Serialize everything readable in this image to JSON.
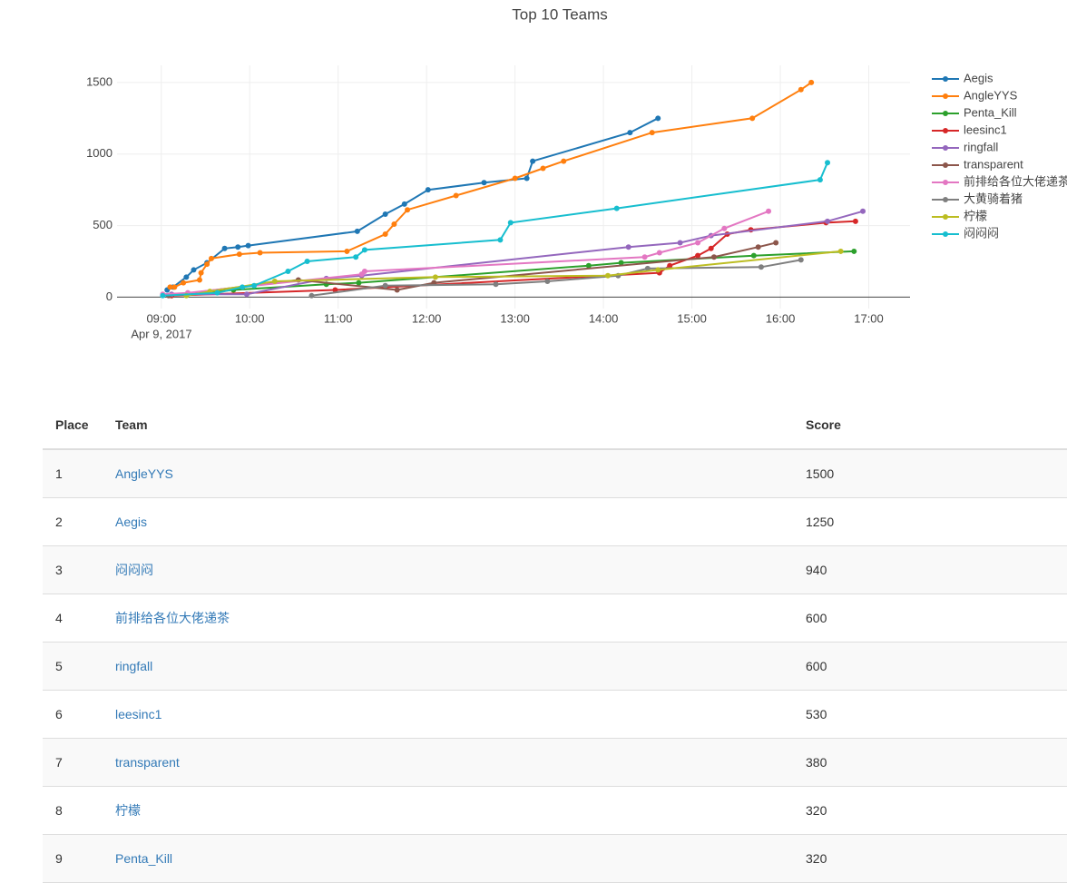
{
  "chart_data": {
    "type": "line",
    "title": "Top 10 Teams",
    "x_date_label": "Apr 9, 2017",
    "xlim": [
      "2017-04-09 08:30",
      "2017-04-09 17:28"
    ],
    "xticks": [
      {
        "value": "2017-04-09 09:00",
        "label": "09:00"
      },
      {
        "value": "2017-04-09 10:00",
        "label": "10:00"
      },
      {
        "value": "2017-04-09 11:00",
        "label": "11:00"
      },
      {
        "value": "2017-04-09 12:00",
        "label": "12:00"
      },
      {
        "value": "2017-04-09 13:00",
        "label": "13:00"
      },
      {
        "value": "2017-04-09 14:00",
        "label": "14:00"
      },
      {
        "value": "2017-04-09 15:00",
        "label": "15:00"
      },
      {
        "value": "2017-04-09 16:00",
        "label": "16:00"
      },
      {
        "value": "2017-04-09 17:00",
        "label": "17:00"
      }
    ],
    "ylim": [
      -80,
      1620
    ],
    "yticks": [
      0,
      500,
      1000,
      1500
    ],
    "grid": true,
    "legend": "right",
    "series": [
      {
        "name": "Aegis",
        "color": "#1f77b4",
        "x": [
          "2017-04-09 09:04",
          "2017-04-09 09:08",
          "2017-04-09 09:17",
          "2017-04-09 09:22",
          "2017-04-09 09:31",
          "2017-04-09 09:43",
          "2017-04-09 09:52",
          "2017-04-09 09:59",
          "2017-04-09 11:13",
          "2017-04-09 11:32",
          "2017-04-09 11:45",
          "2017-04-09 12:01",
          "2017-04-09 12:39",
          "2017-04-09 13:08",
          "2017-04-09 13:12",
          "2017-04-09 14:18",
          "2017-04-09 14:37"
        ],
        "values": [
          50,
          70,
          140,
          190,
          240,
          340,
          350,
          360,
          460,
          580,
          650,
          750,
          800,
          830,
          950,
          1150,
          1250
        ]
      },
      {
        "name": "AngleYYS",
        "color": "#ff7f0e",
        "x": [
          "2017-04-09 09:06",
          "2017-04-09 09:09",
          "2017-04-09 09:15",
          "2017-04-09 09:26",
          "2017-04-09 09:27",
          "2017-04-09 09:31",
          "2017-04-09 09:34",
          "2017-04-09 09:53",
          "2017-04-09 10:07",
          "2017-04-09 11:06",
          "2017-04-09 11:32",
          "2017-04-09 11:38",
          "2017-04-09 11:47",
          "2017-04-09 12:20",
          "2017-04-09 13:00",
          "2017-04-09 13:19",
          "2017-04-09 13:33",
          "2017-04-09 14:33",
          "2017-04-09 15:41",
          "2017-04-09 16:14",
          "2017-04-09 16:21"
        ],
        "values": [
          70,
          70,
          100,
          120,
          170,
          230,
          270,
          300,
          310,
          320,
          440,
          510,
          610,
          710,
          830,
          900,
          950,
          1150,
          1250,
          1450,
          1500
        ]
      },
      {
        "name": "Penta_Kill",
        "color": "#2ca02c",
        "x": [
          "2017-04-09 09:07",
          "2017-04-09 09:49",
          "2017-04-09 10:52",
          "2017-04-09 11:14",
          "2017-04-09 13:50",
          "2017-04-09 14:12",
          "2017-04-09 15:42",
          "2017-04-09 16:50"
        ],
        "values": [
          10,
          50,
          90,
          100,
          220,
          240,
          290,
          320
        ]
      },
      {
        "name": "leesinc1",
        "color": "#d62728",
        "x": [
          "2017-04-09 09:07",
          "2017-04-09 10:58",
          "2017-04-09 14:38",
          "2017-04-09 14:45",
          "2017-04-09 15:04",
          "2017-04-09 15:13",
          "2017-04-09 15:24",
          "2017-04-09 15:40",
          "2017-04-09 16:31",
          "2017-04-09 16:51"
        ],
        "values": [
          10,
          50,
          170,
          220,
          290,
          340,
          440,
          470,
          520,
          530
        ]
      },
      {
        "name": "ringfall",
        "color": "#9467bd",
        "x": [
          "2017-04-09 09:07",
          "2017-04-09 09:58",
          "2017-04-09 10:52",
          "2017-04-09 11:16",
          "2017-04-09 14:17",
          "2017-04-09 14:52",
          "2017-04-09 15:13",
          "2017-04-09 16:32",
          "2017-04-09 16:56"
        ],
        "values": [
          20,
          20,
          130,
          150,
          350,
          380,
          430,
          530,
          600
        ]
      },
      {
        "name": "transparent",
        "color": "#8c564b",
        "x": [
          "2017-04-09 09:05",
          "2017-04-09 10:33",
          "2017-04-09 11:40",
          "2017-04-09 12:05",
          "2017-04-09 15:15",
          "2017-04-09 15:45",
          "2017-04-09 15:57"
        ],
        "values": [
          10,
          120,
          50,
          100,
          280,
          350,
          380
        ]
      },
      {
        "name": "前排给各位大佬递茶",
        "color": "#e377c2",
        "x": [
          "2017-04-09 09:01",
          "2017-04-09 09:18",
          "2017-04-09 11:16",
          "2017-04-09 11:18",
          "2017-04-09 14:28",
          "2017-04-09 14:38",
          "2017-04-09 15:04",
          "2017-04-09 15:22",
          "2017-04-09 15:52"
        ],
        "values": [
          20,
          30,
          160,
          180,
          280,
          310,
          380,
          480,
          600
        ]
      },
      {
        "name": "大黄骑着猪",
        "color": "#7f7f7f",
        "x": [
          "2017-04-09 10:42",
          "2017-04-09 11:32",
          "2017-04-09 12:47",
          "2017-04-09 13:22",
          "2017-04-09 14:10",
          "2017-04-09 14:30",
          "2017-04-09 15:47",
          "2017-04-09 16:14"
        ],
        "values": [
          10,
          80,
          90,
          110,
          150,
          200,
          210,
          260
        ]
      },
      {
        "name": "柠檬",
        "color": "#bcbd22",
        "x": [
          "2017-04-09 09:17",
          "2017-04-09 09:33",
          "2017-04-09 10:17",
          "2017-04-09 12:06",
          "2017-04-09 14:03",
          "2017-04-09 14:37",
          "2017-04-09 16:41"
        ],
        "values": [
          10,
          40,
          110,
          140,
          150,
          190,
          320
        ]
      },
      {
        "name": "闷闷闷",
        "color": "#17becf",
        "x": [
          "2017-04-09 09:01",
          "2017-04-09 09:38",
          "2017-04-09 09:55",
          "2017-04-09 10:03",
          "2017-04-09 10:26",
          "2017-04-09 10:39",
          "2017-04-09 11:12",
          "2017-04-09 11:18",
          "2017-04-09 12:50",
          "2017-04-09 12:57",
          "2017-04-09 14:09",
          "2017-04-09 16:27",
          "2017-04-09 16:32"
        ],
        "values": [
          10,
          30,
          70,
          80,
          180,
          250,
          280,
          330,
          400,
          520,
          620,
          820,
          940
        ]
      }
    ]
  },
  "table": {
    "header": [
      "Place",
      "Team",
      "Score"
    ],
    "rows": [
      [
        "1",
        "AngleYYS",
        "1500"
      ],
      [
        "2",
        "Aegis",
        "1250"
      ],
      [
        "3",
        "闷闷闷",
        "940"
      ],
      [
        "4",
        "前排给各位大佬递茶",
        "600"
      ],
      [
        "5",
        "ringfall",
        "600"
      ],
      [
        "6",
        "leesinc1",
        "530"
      ],
      [
        "7",
        "transparent",
        "380"
      ],
      [
        "8",
        "柠檬",
        "320"
      ],
      [
        "9",
        "Penta_Kill",
        "320"
      ]
    ]
  }
}
